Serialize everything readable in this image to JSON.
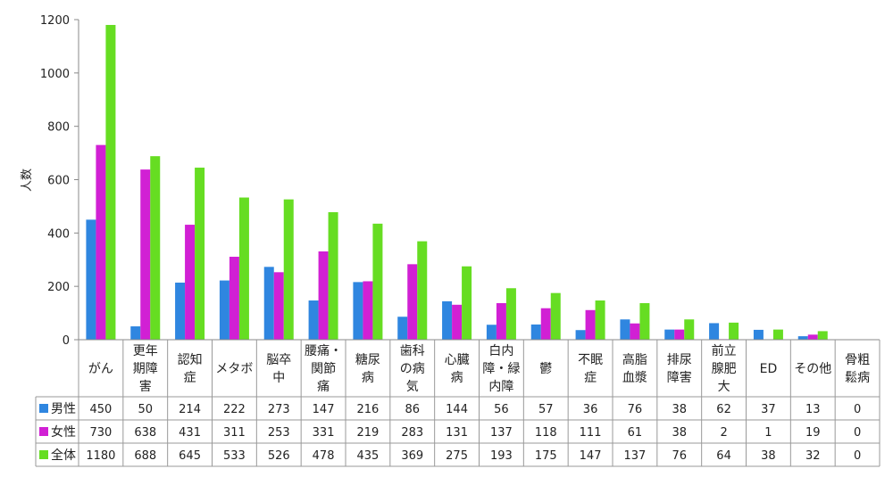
{
  "chart_data": {
    "type": "bar",
    "ylabel": "人数",
    "ylim": [
      0,
      1200
    ],
    "yticks": [
      0,
      200,
      400,
      600,
      800,
      1000,
      1200
    ],
    "grid": false,
    "legend_placement": "data-table-left",
    "categories": [
      "がん",
      "更年期障害",
      "認知症",
      "メタボ",
      "脳卒中",
      "腰痛・関節痛",
      "糖尿病",
      "歯科の病気",
      "心臓病",
      "白内障・緑内障",
      "鬱",
      "不眠症",
      "高脂血漿",
      "排尿障害",
      "前立腺肥大",
      "ED",
      "その他",
      "骨粗鬆病"
    ],
    "category_lines": [
      [
        "がん"
      ],
      [
        "更年",
        "期障",
        "害"
      ],
      [
        "認知",
        "症"
      ],
      [
        "メタボ"
      ],
      [
        "脳卒",
        "中"
      ],
      [
        "腰痛・",
        "関節",
        "痛"
      ],
      [
        "糖尿",
        "病"
      ],
      [
        "歯科",
        "の病",
        "気"
      ],
      [
        "心臓",
        "病"
      ],
      [
        "白内",
        "障・緑",
        "内障"
      ],
      [
        "鬱"
      ],
      [
        "不眠",
        "症"
      ],
      [
        "高脂",
        "血漿"
      ],
      [
        "排尿",
        "障害"
      ],
      [
        "前立",
        "腺肥",
        "大"
      ],
      [
        "ED"
      ],
      [
        "その他"
      ],
      [
        "骨粗",
        "鬆病"
      ]
    ],
    "series": [
      {
        "name": "男性",
        "color": "#2f86e0",
        "values": [
          450,
          50,
          214,
          222,
          273,
          147,
          216,
          86,
          144,
          56,
          57,
          36,
          76,
          38,
          62,
          37,
          13,
          0
        ]
      },
      {
        "name": "女性",
        "color": "#d120d4",
        "values": [
          730,
          638,
          431,
          311,
          253,
          331,
          219,
          283,
          131,
          137,
          118,
          111,
          61,
          38,
          2,
          1,
          19,
          0
        ]
      },
      {
        "name": "全体",
        "color": "#66dd22",
        "values": [
          1180,
          688,
          645,
          533,
          526,
          478,
          435,
          369,
          275,
          193,
          175,
          147,
          137,
          76,
          64,
          38,
          32,
          0
        ]
      }
    ]
  }
}
